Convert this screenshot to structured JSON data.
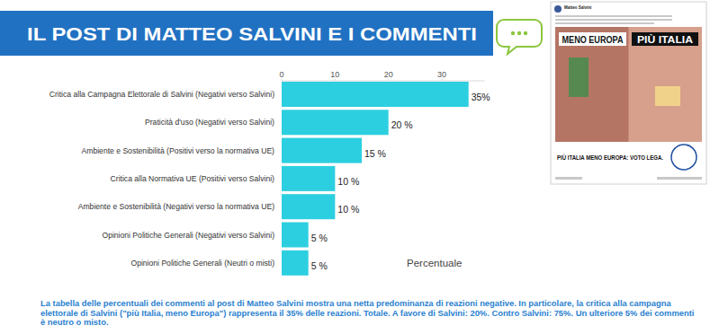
{
  "chart_data": {
    "type": "bar",
    "orientation": "horizontal",
    "title": "IL POST DI MATTEO SALVINI E I COMMENTI",
    "x_label": "Percentuale",
    "categories": [
      "Critica alla Campagna Elettorale di Salvini (Negativi verso Salvini)",
      "Praticità d'uso (Negativi verso Salvini)",
      "Ambiente e Sostenibilità (Positivi verso la normativa UE)",
      "Critica alla Normativa UE (Positivi verso Salvini)",
      "Ambiente e Sostenibilità (Negativi verso la normativa UE)",
      "Opinioni Politiche Generali (Negativi verso Salvini)",
      "Opinioni Politiche Generali (Neutri o misti)"
    ],
    "values": [
      35,
      20,
      15,
      10,
      10,
      5,
      5
    ],
    "value_labels": [
      "35%",
      "20 %",
      "15 %",
      "10 %",
      "10 %",
      "5 %",
      "5 %"
    ],
    "data_labels": true,
    "color": "#2ccfe0",
    "xlim": [
      0,
      38
    ],
    "xticks": [
      0,
      10,
      20,
      30
    ],
    "grid": false,
    "note": "La tabella delle percentuali dei commenti al post di Matteo Salvini mostra una netta predominanza di reazioni negative. In particolare, la critica alla campagna elettorale di Salvini (\"più Italia, meno Europa\") rappresenta il 35% delle reazioni.  Totale. A favore di Salvini: 20%. Contro Salvini: 75%. Un ulteriore 5% dei commenti è neutro o misto."
  },
  "post": {
    "author": "Matteo Salvini",
    "headline_left": "MENO EUROPA",
    "headline_right": "PIÙ ITALIA",
    "slogan": "PIÙ ITALIA MENO EUROPA: VOTO LEGA."
  }
}
